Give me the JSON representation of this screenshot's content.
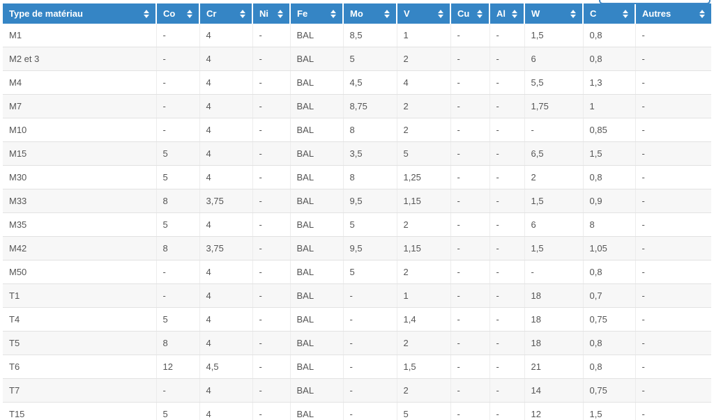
{
  "search": {
    "value": ""
  },
  "table": {
    "columns": [
      "Type de matériau",
      "Co",
      "Cr",
      "Ni",
      "Fe",
      "Mo",
      "V",
      "Cu",
      "Al",
      "W",
      "C",
      "Autres"
    ],
    "rows": [
      [
        "M1",
        "-",
        "4",
        "-",
        "BAL",
        "8,5",
        "1",
        "-",
        "-",
        "1,5",
        "0,8",
        "-"
      ],
      [
        "M2 et 3",
        "-",
        "4",
        "-",
        "BAL",
        "5",
        "2",
        "-",
        "-",
        "6",
        "0,8",
        "-"
      ],
      [
        "M4",
        "-",
        "4",
        "-",
        "BAL",
        "4,5",
        "4",
        "-",
        "-",
        "5,5",
        "1,3",
        "-"
      ],
      [
        "M7",
        "-",
        "4",
        "-",
        "BAL",
        "8,75",
        "2",
        "-",
        "-",
        "1,75",
        "1",
        "-"
      ],
      [
        "M10",
        "-",
        "4",
        "-",
        "BAL",
        "8",
        "2",
        "-",
        "-",
        "-",
        "0,85",
        "-"
      ],
      [
        "M15",
        "5",
        "4",
        "-",
        "BAL",
        "3,5",
        "5",
        "-",
        "-",
        "6,5",
        "1,5",
        "-"
      ],
      [
        "M30",
        "5",
        "4",
        "-",
        "BAL",
        "8",
        "1,25",
        "-",
        "-",
        "2",
        "0,8",
        "-"
      ],
      [
        "M33",
        "8",
        "3,75",
        "-",
        "BAL",
        "9,5",
        "1,15",
        "-",
        "-",
        "1,5",
        "0,9",
        "-"
      ],
      [
        "M35",
        "5",
        "4",
        "-",
        "BAL",
        "5",
        "2",
        "-",
        "-",
        "6",
        "8",
        "-"
      ],
      [
        "M42",
        "8",
        "3,75",
        "-",
        "BAL",
        "9,5",
        "1,15",
        "-",
        "-",
        "1,5",
        "1,05",
        "-"
      ],
      [
        "M50",
        "-",
        "4",
        "-",
        "BAL",
        "5",
        "2",
        "-",
        "-",
        "-",
        "0,8",
        "-"
      ],
      [
        "T1",
        "-",
        "4",
        "-",
        "BAL",
        "-",
        "1",
        "-",
        "-",
        "18",
        "0,7",
        "-"
      ],
      [
        "T4",
        "5",
        "4",
        "-",
        "BAL",
        "-",
        "1,4",
        "-",
        "-",
        "18",
        "0,75",
        "-"
      ],
      [
        "T5",
        "8",
        "4",
        "-",
        "BAL",
        "-",
        "2",
        "-",
        "-",
        "18",
        "0,8",
        "-"
      ],
      [
        "T6",
        "12",
        "4,5",
        "-",
        "BAL",
        "-",
        "1,5",
        "-",
        "-",
        "21",
        "0,8",
        "-"
      ],
      [
        "T7",
        "-",
        "4",
        "-",
        "BAL",
        "-",
        "2",
        "-",
        "-",
        "14",
        "0,75",
        "-"
      ],
      [
        "T15",
        "5",
        "4",
        "-",
        "BAL",
        "-",
        "5",
        "-",
        "-",
        "12",
        "1,5",
        "-"
      ]
    ]
  },
  "colors": {
    "header_bg": "#3585c5",
    "header_text": "#ffffff",
    "body_text": "#555555",
    "stripe_bg": "#f7f7f7",
    "search_border": "#3c87c6"
  }
}
